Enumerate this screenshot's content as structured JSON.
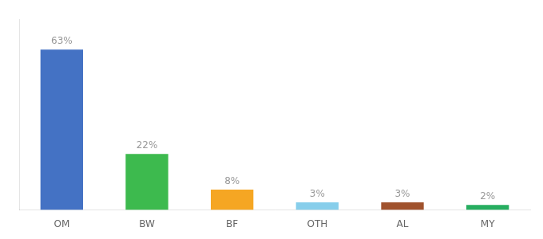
{
  "chart_data": {
    "type": "bar",
    "categories": [
      "OM",
      "BW",
      "BF",
      "OTH",
      "AL",
      "MY"
    ],
    "values": [
      63,
      22,
      8,
      3,
      3,
      2
    ],
    "value_labels": [
      "63%",
      "22%",
      "8%",
      "3%",
      "3%",
      "2%"
    ],
    "data_labels": true,
    "colors": [
      "#4472c4",
      "#3dba4e",
      "#f5a623",
      "#87ceeb",
      "#a0522d",
      "#27ae60"
    ],
    "ylim": [
      0,
      75
    ],
    "grid": false,
    "tick_labels": "x"
  }
}
